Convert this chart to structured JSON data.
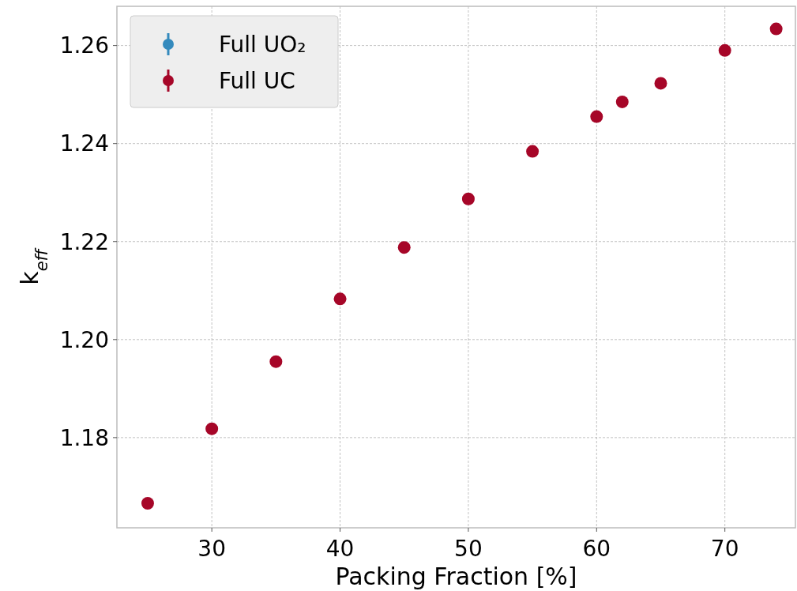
{
  "chart_data": {
    "type": "scatter",
    "xlabel": "Packing Fraction [%]",
    "ylabel": "k$_{eff}$",
    "x": [
      25,
      30,
      35,
      40,
      45,
      50,
      55,
      60,
      62,
      65,
      70,
      74
    ],
    "series": [
      {
        "name": "Full UO₂",
        "color": "#348abd",
        "values": [
          null,
          null,
          null,
          null,
          null,
          null,
          null,
          null,
          null,
          null,
          null,
          null
        ]
      },
      {
        "name": "Full UC",
        "color": "#a60628",
        "values": [
          1.1666,
          1.1818,
          1.1955,
          1.2083,
          1.2188,
          1.2287,
          1.2384,
          1.2455,
          1.2485,
          1.2523,
          1.259,
          1.2634
        ]
      }
    ],
    "xlim": [
      22.6,
      75.5
    ],
    "ylim": [
      1.1616,
      1.268
    ],
    "xticks": [
      30,
      40,
      50,
      60,
      70
    ],
    "yticks": [
      {
        "value": 1.18,
        "label": "1.18"
      },
      {
        "value": 1.2,
        "label": "1.20"
      },
      {
        "value": 1.22,
        "label": "1.22"
      },
      {
        "value": 1.24,
        "label": "1.24"
      },
      {
        "value": 1.26,
        "label": "1.26"
      }
    ],
    "grid": true,
    "legend": "top left",
    "marker": "circle"
  }
}
